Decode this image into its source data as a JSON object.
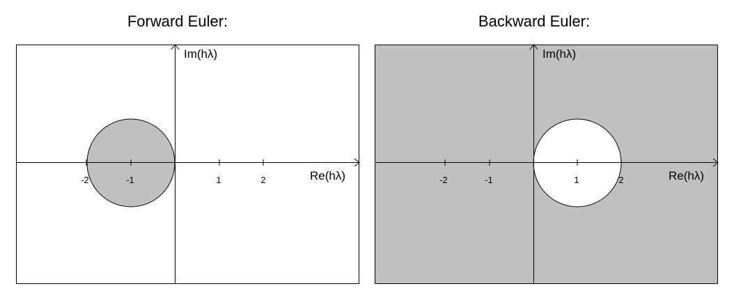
{
  "panels": [
    {
      "title": "Forward Euler:",
      "xlabel": "Re(hλ)",
      "ylabel": "Im(hλ)",
      "tick_labels": [
        "-2",
        "-1",
        "1",
        "2"
      ],
      "stable_region": "inside circle",
      "circle_center": [
        -1,
        0
      ],
      "circle_radius": 1
    },
    {
      "title": "Backward Euler:",
      "xlabel": "Re(hλ)",
      "ylabel": "Im(hλ)",
      "tick_labels": [
        "-2",
        "-1",
        "1",
        "2"
      ],
      "stable_region": "outside circle",
      "circle_center": [
        1,
        0
      ],
      "circle_radius": 1
    }
  ],
  "colors": {
    "shade": "#c0c0c0",
    "background": "#ffffff",
    "stroke": "#000000"
  }
}
